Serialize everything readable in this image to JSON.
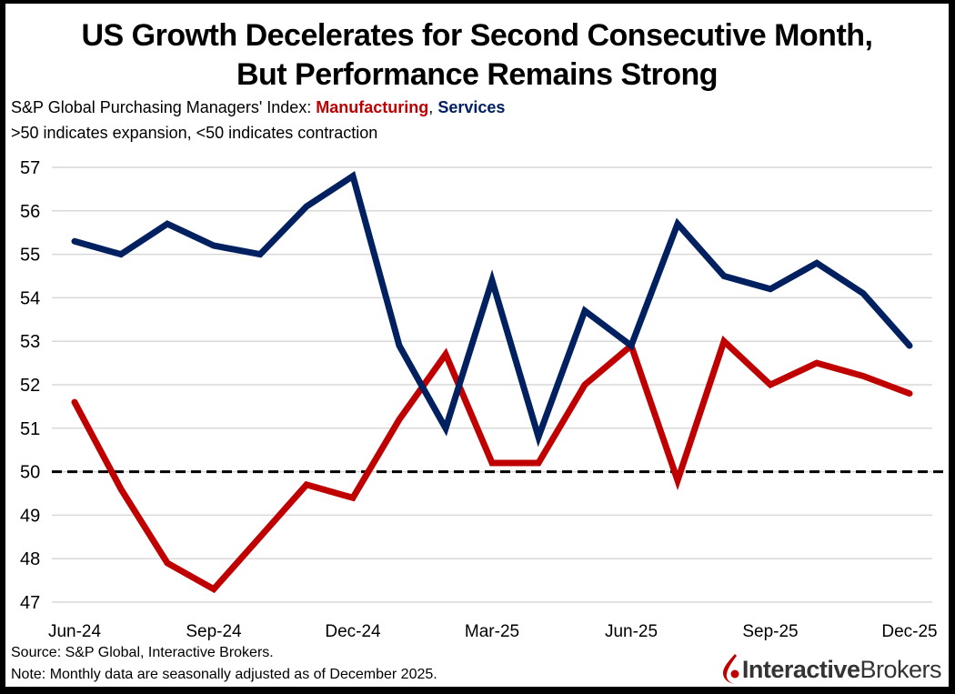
{
  "chart_data": {
    "type": "line",
    "title": "US Growth Decelerates for Second Consecutive Month, But Performance Remains Strong",
    "title_lines": [
      "US Growth Decelerates for Second Consecutive Month,",
      "But Performance Remains Strong"
    ],
    "subtitle_prefix": "S&P Global Purchasing Managers' Index: ",
    "subtitle_series_1": "Manufacturing",
    "subtitle_sep": ", ",
    "subtitle_series_2": "Services",
    "subtitle_line2": ">50 indicates expansion, <50 indicates contraction",
    "xlabel": "",
    "ylabel": "",
    "ylim": [
      47,
      57
    ],
    "yticks": [
      47,
      48,
      49,
      50,
      51,
      52,
      53,
      54,
      55,
      56,
      57
    ],
    "x": [
      "Jun-24",
      "Jul-24",
      "Aug-24",
      "Sep-24",
      "Oct-24",
      "Nov-24",
      "Dec-24",
      "Jan-25",
      "Feb-25",
      "Mar-25",
      "Apr-25",
      "May-25",
      "Jun-25",
      "Jul-25",
      "Aug-25",
      "Sep-25",
      "Oct-25",
      "Nov-25",
      "Dec-25"
    ],
    "xtick_labels": [
      "Jun-24",
      "Sep-24",
      "Dec-24",
      "Mar-25",
      "Jun-25",
      "Sep-25",
      "Dec-25"
    ],
    "grid": true,
    "legend": "inline-subtitle",
    "reference_line": {
      "value": 50,
      "style": "dashed",
      "color": "#000000"
    },
    "series": [
      {
        "name": "Manufacturing",
        "color": "#c00000",
        "values": [
          51.6,
          49.6,
          47.9,
          47.3,
          48.5,
          49.7,
          49.4,
          51.2,
          52.7,
          50.2,
          50.2,
          52.0,
          52.9,
          49.8,
          53.0,
          52.0,
          52.5,
          52.2,
          51.8
        ]
      },
      {
        "name": "Services",
        "color": "#002060",
        "values": [
          55.3,
          55.0,
          55.7,
          55.2,
          55.0,
          56.1,
          56.8,
          52.9,
          51.0,
          54.4,
          50.8,
          53.7,
          52.9,
          55.7,
          54.5,
          54.2,
          54.8,
          54.1,
          52.9
        ]
      }
    ]
  },
  "footer": {
    "source": "Source: S&P Global, Interactive Brokers.",
    "note": "Note: Monthly data are seasonally adjusted as of December  2025."
  },
  "logo": {
    "icon": "interactive-brokers-flame-icon",
    "text_bold": "Interactive",
    "text_regular": "Brokers",
    "color": "#c00000"
  }
}
